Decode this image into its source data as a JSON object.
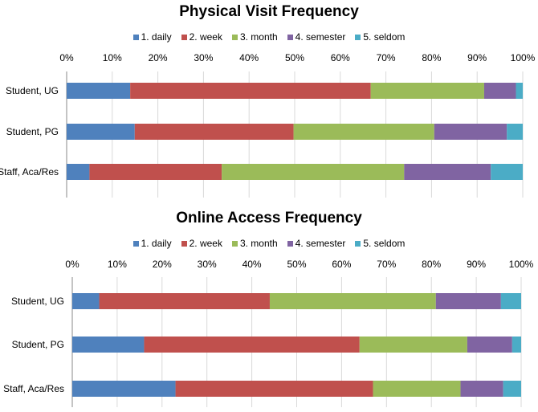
{
  "chart_data": [
    {
      "type": "bar",
      "orientation": "horizontal",
      "stacked": "percent",
      "title": "Physical Visit Frequency",
      "categories": [
        "Student, UG",
        "Student, PG",
        "Staff, Aca/Res"
      ],
      "x_ticks": [
        "0%",
        "10%",
        "20%",
        "30%",
        "40%",
        "50%",
        "60%",
        "70%",
        "80%",
        "90%",
        "100%"
      ],
      "xlim": [
        0,
        100
      ],
      "grid": true,
      "legend_position": "top",
      "series": [
        {
          "name": "1. daily",
          "color": "#4f81bd",
          "values": [
            14,
            15,
            5
          ]
        },
        {
          "name": "2. week",
          "color": "#c0504d",
          "values": [
            53,
            35,
            29
          ]
        },
        {
          "name": "3. month",
          "color": "#9bbb59",
          "values": [
            25,
            31,
            40
          ]
        },
        {
          "name": "4. semester",
          "color": "#8064a2",
          "values": [
            7,
            16,
            19
          ]
        },
        {
          "name": "5. seldom",
          "color": "#4bacc6",
          "values": [
            1.5,
            3.5,
            7
          ]
        }
      ]
    },
    {
      "type": "bar",
      "orientation": "horizontal",
      "stacked": "percent",
      "title": "Online Access Frequency",
      "categories": [
        "Student, UG",
        "Student, PG",
        "Staff, Aca/Res"
      ],
      "x_ticks": [
        "0%",
        "10%",
        "20%",
        "30%",
        "40%",
        "50%",
        "60%",
        "70%",
        "80%",
        "90%",
        "100%"
      ],
      "xlim": [
        0,
        100
      ],
      "grid": true,
      "legend_position": "top",
      "series": [
        {
          "name": "1. daily",
          "color": "#4f81bd",
          "values": [
            6,
            16,
            23
          ]
        },
        {
          "name": "2. week",
          "color": "#c0504d",
          "values": [
            38,
            48,
            44
          ]
        },
        {
          "name": "3. month",
          "color": "#9bbb59",
          "values": [
            37,
            24,
            19.5
          ]
        },
        {
          "name": "4. semester",
          "color": "#8064a2",
          "values": [
            14.5,
            10,
            9.5
          ]
        },
        {
          "name": "5. seldom",
          "color": "#4bacc6",
          "values": [
            4.5,
            2,
            4
          ]
        }
      ]
    }
  ]
}
